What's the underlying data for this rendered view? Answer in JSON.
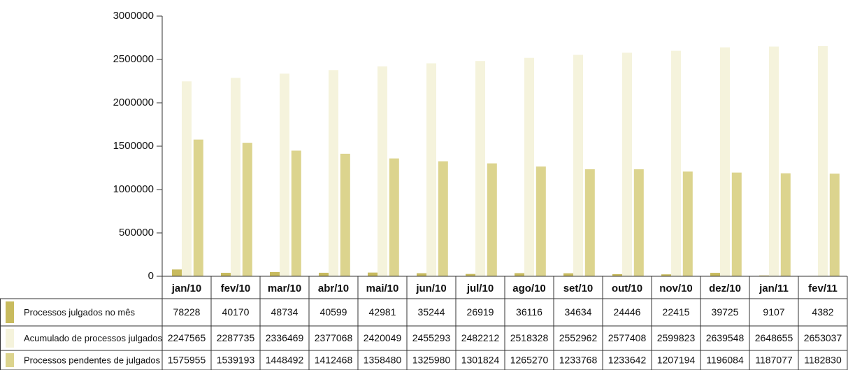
{
  "chart_data": {
    "type": "bar",
    "categories": [
      "jan/10",
      "fev/10",
      "mar/10",
      "abr/10",
      "mai/10",
      "jun/10",
      "jul/10",
      "ago/10",
      "set/10",
      "out/10",
      "nov/10",
      "dez/10",
      "jan/11",
      "fev/11"
    ],
    "series": [
      {
        "name": "Processos julgados no mês",
        "color": "#c8bb5e",
        "values": [
          78228,
          40170,
          48734,
          40599,
          42981,
          35244,
          26919,
          36116,
          34634,
          24446,
          22415,
          39725,
          9107,
          4382
        ]
      },
      {
        "name": "Acumulado de processos julgados",
        "color": "#f5f3dc",
        "values": [
          2247565,
          2287735,
          2336469,
          2377068,
          2420049,
          2455293,
          2482212,
          2518328,
          2552962,
          2577408,
          2599823,
          2639548,
          2648655,
          2653037
        ]
      },
      {
        "name": "Processos pendentes de julgados",
        "color": "#dcd48e",
        "values": [
          1575955,
          1539193,
          1448492,
          1412468,
          1358480,
          1325980,
          1301824,
          1265270,
          1233768,
          1233642,
          1207194,
          1196084,
          1187077,
          1182830
        ]
      }
    ],
    "ylim": [
      0,
      3000000
    ],
    "yticks": [
      0,
      500000,
      1000000,
      1500000,
      2000000,
      2500000,
      3000000
    ]
  }
}
